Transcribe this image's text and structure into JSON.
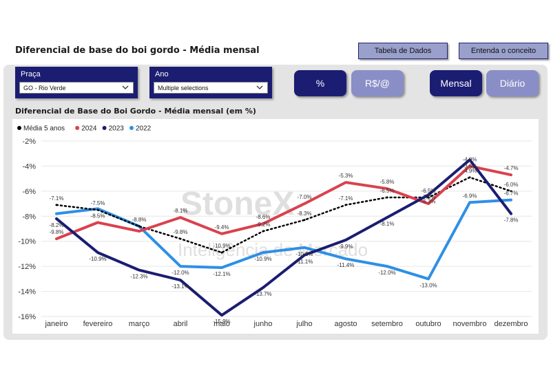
{
  "header": {
    "title": "Diferencial de base do boi gordo - Média mensal",
    "buttons": [
      "Tabela de Dados",
      "Entenda o conceito"
    ]
  },
  "filters": {
    "praca_label": "Praça",
    "praca_value": "GO - Rio Verde",
    "ano_label": "Ano",
    "ano_value": "Multiple selections"
  },
  "toggles": {
    "unit": [
      "%",
      "R$/@"
    ],
    "unit_selected": "%",
    "period": [
      "Mensal",
      "Diário"
    ],
    "period_selected": "Mensal"
  },
  "watermark": {
    "brand": "StoneX",
    "tagline": "Inteligência de Mercado"
  },
  "chart_data": {
    "type": "line",
    "title": "Diferencial de Base do Boi Gordo - Média mensal (em %)",
    "categories": [
      "janeiro",
      "fevereiro",
      "março",
      "abril",
      "maio",
      "junho",
      "julho",
      "agosto",
      "setembro",
      "outubro",
      "novembro",
      "dezembro"
    ],
    "yticks": [
      "-2%",
      "-4%",
      "-6%",
      "-8%",
      "-10%",
      "-12%",
      "-14%",
      "-16%"
    ],
    "ylim": [
      -16,
      -2
    ],
    "legend_position": "top-left",
    "series": [
      {
        "name": "Média 5 anos",
        "color": "#000000",
        "style": "dotted",
        "values": [
          -7.1,
          -7.5,
          -8.8,
          -9.8,
          -10.9,
          -9.2,
          -8.3,
          -7.1,
          -6.5,
          -6.5,
          -4.9,
          -6.0
        ],
        "labels": [
          "-7.1%",
          "-7.5%",
          "-8.8%",
          "-9.8%",
          "-10.9%",
          "-9.2%",
          "-8.3%",
          "-7.1%",
          "-6.5%",
          "-6.5%",
          "-4.9%",
          "-6.0%"
        ]
      },
      {
        "name": "2024",
        "color": "#d9424e",
        "style": "solid",
        "values": [
          -9.8,
          -8.5,
          -9.2,
          -8.1,
          -9.4,
          -8.6,
          -7.0,
          -5.3,
          -5.8,
          -7.0,
          -4.0,
          -4.7
        ],
        "labels": [
          "-9.8%",
          "-8.5%",
          "",
          "-8.1%",
          "-9.4%",
          "-8.6%",
          "-7.0%",
          "-5.3%",
          "-5.8%",
          "-7.0%",
          "-4.0%",
          "-4.7%"
        ]
      },
      {
        "name": "2023",
        "color": "#1b1d72",
        "style": "solid",
        "values": [
          -8.2,
          -10.9,
          -12.3,
          -13.1,
          -15.9,
          -13.7,
          -11.1,
          -9.9,
          -8.1,
          -6.3,
          -3.5,
          -7.8
        ],
        "labels": [
          "-8.2%",
          "-10.9%",
          "-12.3%",
          "-13.1%",
          "-15.9%",
          "-13.7%",
          "-11.1%",
          "-9.9%",
          "-8.1%",
          "-6.3%",
          "-3.5%",
          "-7.8%"
        ]
      },
      {
        "name": "2022",
        "color": "#2e8fe6",
        "style": "solid",
        "values": [
          -7.8,
          -7.4,
          -8.8,
          -12.0,
          -12.1,
          -10.9,
          -10.5,
          -11.4,
          -12.0,
          -13.0,
          -6.9,
          -6.7
        ],
        "labels": [
          "",
          "",
          "",
          "-12.0%",
          "-12.1%",
          "-10.9%",
          "-10.5%",
          "-11.4%",
          "-12.0%",
          "-13.0%",
          "-6.9%",
          "-6.7%"
        ]
      }
    ]
  }
}
